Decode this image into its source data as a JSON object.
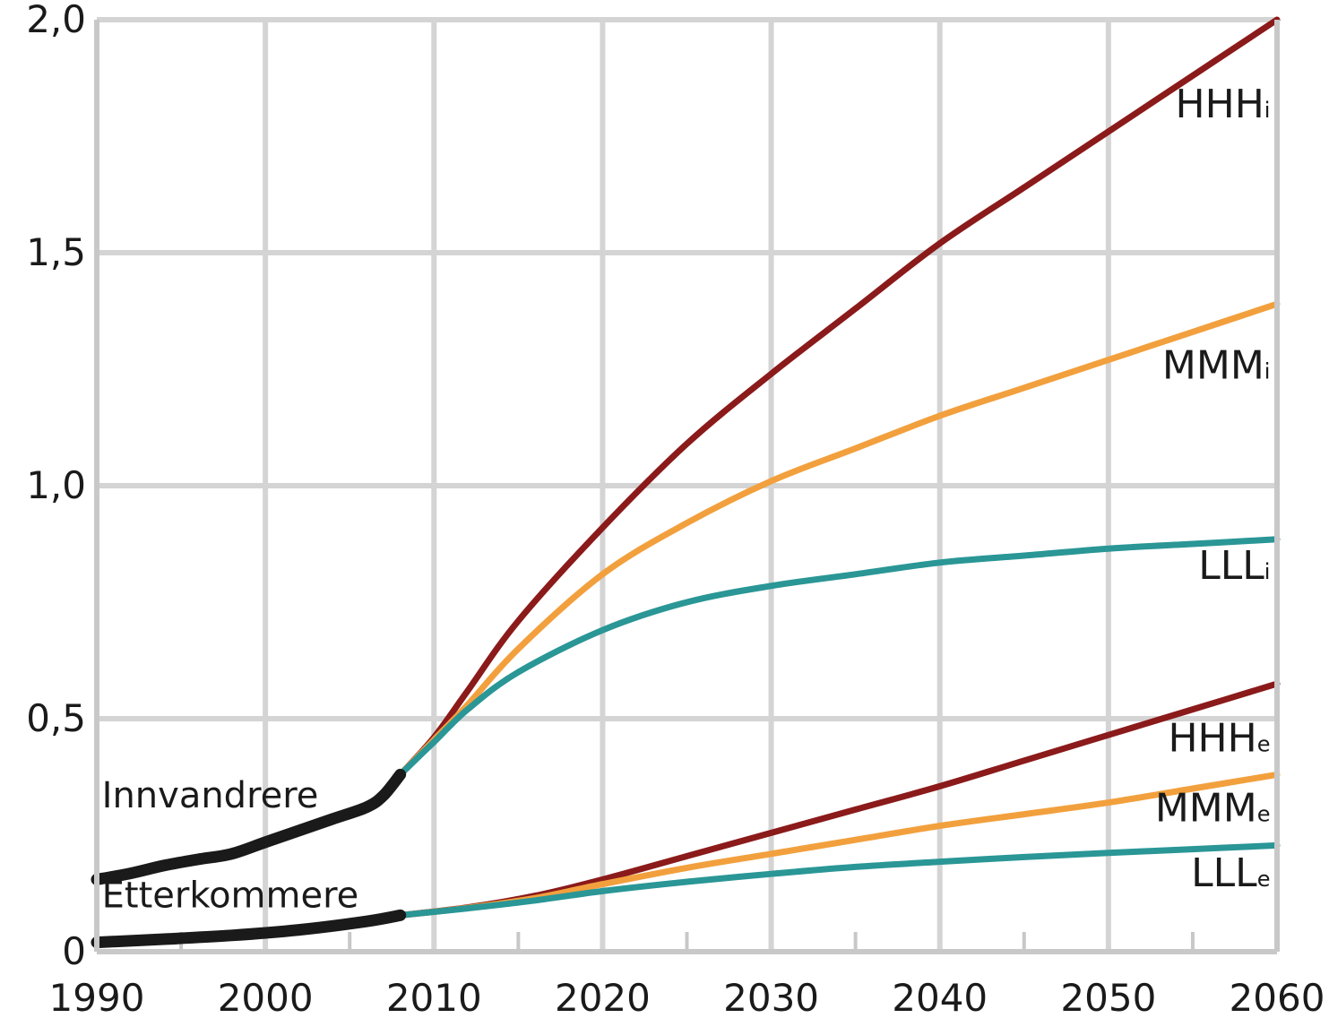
{
  "chart_data": {
    "type": "line",
    "title": "",
    "xlabel": "",
    "ylabel": "",
    "xlim": [
      1990,
      2060
    ],
    "ylim": [
      0,
      2.0
    ],
    "x_ticks": [
      1990,
      2000,
      2010,
      2020,
      2030,
      2040,
      2050,
      2060
    ],
    "x_tick_labels": [
      "1990",
      "2000",
      "2010",
      "2020",
      "2030",
      "2040",
      "2050",
      "2060"
    ],
    "y_ticks": [
      0,
      0.5,
      1.0,
      1.5,
      2.0
    ],
    "y_tick_labels": [
      "0",
      "0,5",
      "1,0",
      "1,5",
      "2,0"
    ],
    "grid": true,
    "group_labels": [
      {
        "text": "Innvandrere",
        "x": 1990.3,
        "y": 0.31
      },
      {
        "text": "Etterkommere",
        "x": 1990.3,
        "y": 0.095
      }
    ],
    "series": [
      {
        "name": "Innvandrere",
        "color": "#1a1a1a",
        "historical": true,
        "x": [
          1990,
          1992,
          1994,
          1996,
          1998,
          2000,
          2002,
          2004,
          2006,
          2007,
          2008
        ],
        "y": [
          0.155,
          0.168,
          0.185,
          0.198,
          0.21,
          0.235,
          0.26,
          0.285,
          0.31,
          0.335,
          0.38
        ]
      },
      {
        "name": "Etterkommere",
        "color": "#1a1a1a",
        "historical": true,
        "x": [
          1990,
          1994,
          1998,
          2002,
          2006,
          2008
        ],
        "y": [
          0.02,
          0.027,
          0.035,
          0.047,
          0.065,
          0.078
        ]
      },
      {
        "name": "HHH",
        "subscript": "i",
        "color": "#8b1a1a",
        "x": [
          2008,
          2010,
          2012,
          2015,
          2020,
          2025,
          2030,
          2035,
          2040,
          2045,
          2050,
          2055,
          2060
        ],
        "y": [
          0.38,
          0.46,
          0.56,
          0.71,
          0.91,
          1.09,
          1.24,
          1.38,
          1.52,
          1.64,
          1.76,
          1.88,
          2.0
        ]
      },
      {
        "name": "MMM",
        "subscript": "i",
        "color": "#f2a03d",
        "x": [
          2008,
          2010,
          2012,
          2015,
          2020,
          2025,
          2030,
          2035,
          2040,
          2045,
          2050,
          2055,
          2060
        ],
        "y": [
          0.38,
          0.455,
          0.53,
          0.65,
          0.81,
          0.92,
          1.01,
          1.08,
          1.15,
          1.21,
          1.27,
          1.33,
          1.39
        ]
      },
      {
        "name": "LLL",
        "subscript": "i",
        "color": "#2a9696",
        "x": [
          2008,
          2010,
          2012,
          2015,
          2020,
          2025,
          2030,
          2035,
          2040,
          2045,
          2050,
          2055,
          2060
        ],
        "y": [
          0.38,
          0.45,
          0.52,
          0.6,
          0.69,
          0.75,
          0.785,
          0.81,
          0.835,
          0.85,
          0.865,
          0.875,
          0.885
        ]
      },
      {
        "name": "HHH",
        "subscript": "e",
        "color": "#8b1a1a",
        "x": [
          2008,
          2012,
          2016,
          2020,
          2025,
          2030,
          2035,
          2040,
          2045,
          2050,
          2055,
          2060
        ],
        "y": [
          0.078,
          0.095,
          0.12,
          0.155,
          0.205,
          0.255,
          0.305,
          0.355,
          0.41,
          0.465,
          0.52,
          0.575
        ]
      },
      {
        "name": "MMM",
        "subscript": "e",
        "color": "#f2a03d",
        "x": [
          2008,
          2012,
          2016,
          2020,
          2025,
          2030,
          2035,
          2040,
          2045,
          2050,
          2055,
          2060
        ],
        "y": [
          0.078,
          0.094,
          0.115,
          0.145,
          0.18,
          0.21,
          0.24,
          0.27,
          0.295,
          0.32,
          0.35,
          0.38
        ]
      },
      {
        "name": "LLL",
        "subscript": "e",
        "color": "#2a9696",
        "x": [
          2008,
          2012,
          2016,
          2020,
          2025,
          2030,
          2035,
          2040,
          2045,
          2050,
          2055,
          2060
        ],
        "y": [
          0.078,
          0.093,
          0.11,
          0.13,
          0.15,
          0.167,
          0.182,
          0.193,
          0.203,
          0.212,
          0.22,
          0.228
        ]
      }
    ],
    "series_labels": [
      {
        "name": "HHH",
        "subscript": "i",
        "x": 2059.6,
        "y": 1.79
      },
      {
        "name": "MMM",
        "subscript": "i",
        "x": 2059.6,
        "y": 1.23
      },
      {
        "name": "LLL",
        "subscript": "i",
        "x": 2059.6,
        "y": 0.8
      },
      {
        "name": "HHH",
        "subscript": "e",
        "x": 2059.6,
        "y": 0.43
      },
      {
        "name": "MMM",
        "subscript": "e",
        "x": 2059.6,
        "y": 0.28
      },
      {
        "name": "LLL",
        "subscript": "e",
        "x": 2059.6,
        "y": 0.14
      }
    ]
  }
}
